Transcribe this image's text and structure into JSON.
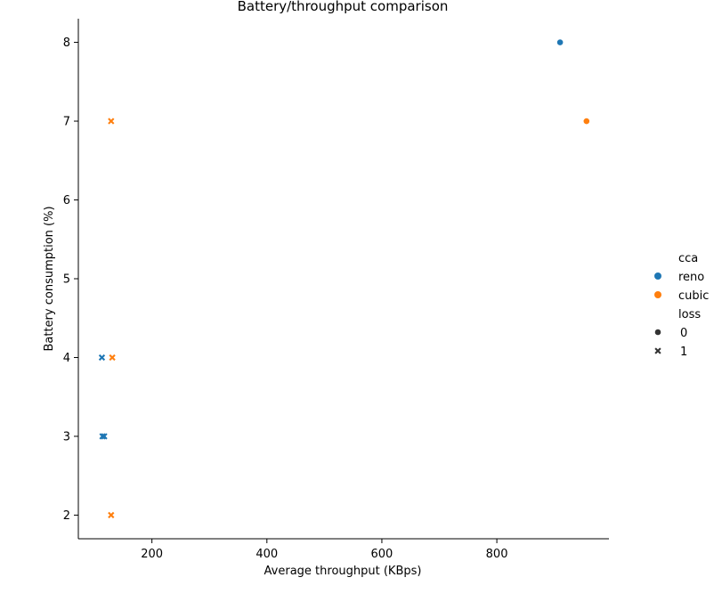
{
  "chart_data": {
    "type": "scatter",
    "title": "Battery/throughput comparison",
    "xlabel": "Average throughput (KBps)",
    "ylabel": "Battery consumption (%)",
    "xlim": [
      72,
      995
    ],
    "ylim": [
      1.7,
      8.3
    ],
    "xticks": [
      200,
      400,
      600,
      800
    ],
    "yticks": [
      2,
      3,
      4,
      5,
      6,
      7,
      8
    ],
    "grid": false,
    "legend_placement": "right",
    "colors": {
      "reno": "#1f77b4",
      "cubic": "#ff7f0e"
    },
    "hue_legend": {
      "title": "cca",
      "entries": [
        "reno",
        "cubic"
      ]
    },
    "style_legend": {
      "title": "loss",
      "entries": [
        {
          "label": "0",
          "marker": "circle"
        },
        {
          "label": "1",
          "marker": "x"
        }
      ]
    },
    "points": [
      {
        "x": 910,
        "y": 8,
        "cca": "reno",
        "loss": "0"
      },
      {
        "x": 113,
        "y": 4,
        "cca": "reno",
        "loss": "1"
      },
      {
        "x": 114,
        "y": 3,
        "cca": "reno",
        "loss": "1"
      },
      {
        "x": 117,
        "y": 3,
        "cca": "reno",
        "loss": "1"
      },
      {
        "x": 956,
        "y": 7,
        "cca": "cubic",
        "loss": "0"
      },
      {
        "x": 129,
        "y": 7,
        "cca": "cubic",
        "loss": "1"
      },
      {
        "x": 131,
        "y": 4,
        "cca": "cubic",
        "loss": "1"
      },
      {
        "x": 129,
        "y": 2,
        "cca": "cubic",
        "loss": "1"
      }
    ]
  }
}
